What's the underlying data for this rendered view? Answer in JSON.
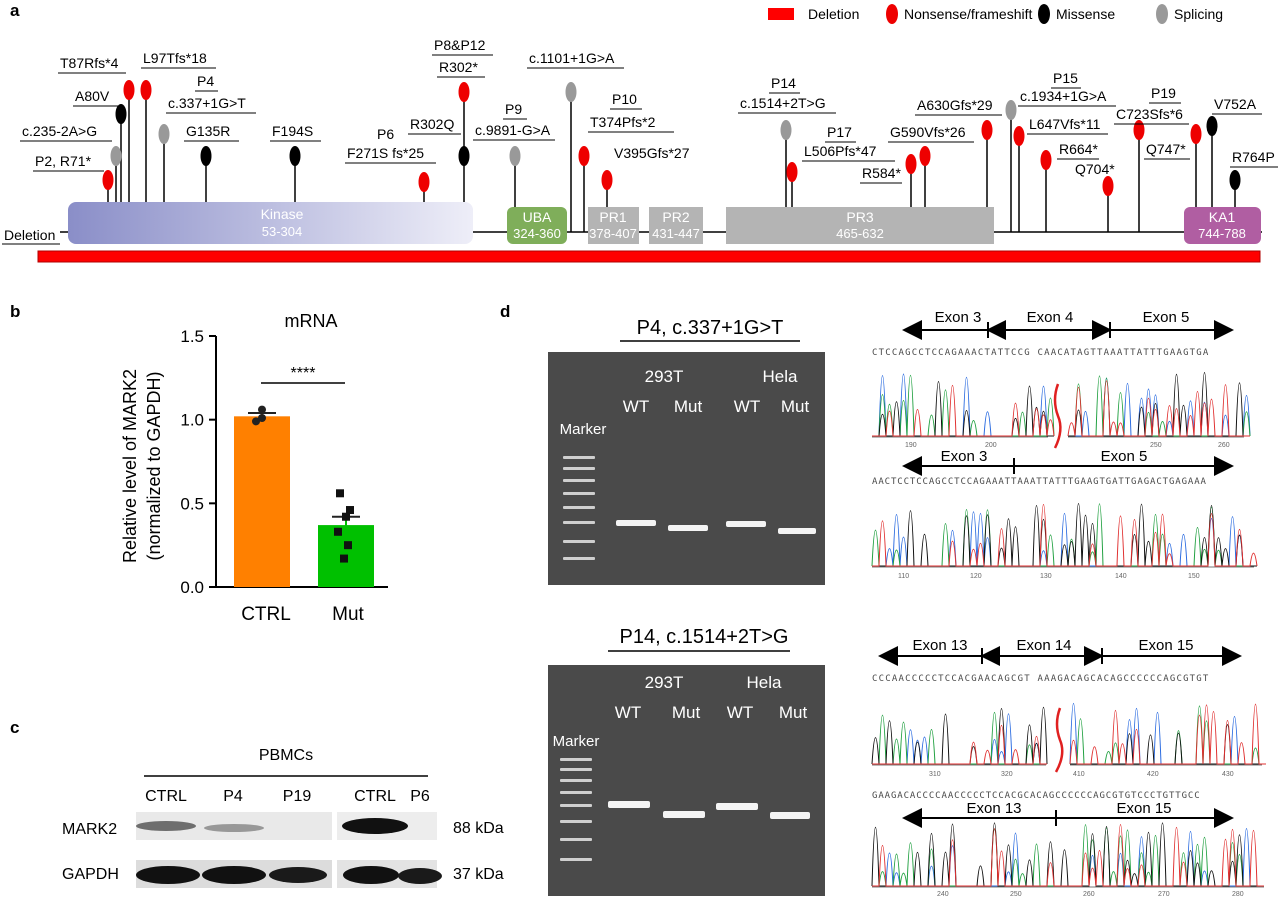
{
  "panel_labels": {
    "a": "a",
    "b": "b",
    "c": "c",
    "d": "d"
  },
  "legend": {
    "deletion": {
      "label": "Deletion",
      "color": "#ff0000"
    },
    "nonsense": {
      "label": "Nonsense/frameshift",
      "color": "#ee0000"
    },
    "missense": {
      "label": "Missense",
      "color": "#000000"
    },
    "splicing": {
      "label": "Splicing",
      "color": "#999999"
    }
  },
  "protein": {
    "domains": [
      {
        "name": "Kinase",
        "range": "53-304",
        "color": "#8a8ec8"
      },
      {
        "name": "UBA",
        "range": "324-360",
        "color": "#7fae5a"
      },
      {
        "name": "PR1",
        "range": "378-407",
        "color": "#b4b4b4"
      },
      {
        "name": "PR2",
        "range": "431-447",
        "color": "#b4b4b4"
      },
      {
        "name": "PR3",
        "range": "465-632",
        "color": "#b4b4b4"
      },
      {
        "name": "KA1",
        "range": "744-788",
        "color": "#b05ea2"
      }
    ],
    "deletion_label": "Deletion",
    "labels": [
      "c.235-2A>G",
      "P2, R71*",
      "A80V",
      "T87Rfs*4",
      "L97Tfs*18",
      "P4",
      "c.337+1G>T",
      "G135R",
      "F194S",
      "P6",
      "F271S fs*25",
      "R302Q",
      "P8&P12",
      "R302*",
      "P9",
      "c.9891-G>A",
      "c.1101+1G>A",
      "P10",
      "T374Pfs*2",
      "V395Gfs*27",
      "P14",
      "c.1514+2T>G",
      "P17",
      "L506Pfs*47",
      "R584*",
      "G590Vfs*26",
      "A630Gfs*29",
      "P15",
      "c.1934+1G>A",
      "L647Vfs*11",
      "R664*",
      "Q704*",
      "P19",
      "C723Sfs*6",
      "Q747*",
      "V752A",
      "R764P"
    ]
  },
  "panel_b": {
    "chart_data": {
      "type": "bar",
      "title": "mRNA",
      "ylabel_line1": "Relative level of MARK2",
      "ylabel_line2": "(normalized to GAPDH)",
      "categories": [
        "CTRL",
        "Mut"
      ],
      "values": [
        1.02,
        0.37
      ],
      "errors": [
        0.02,
        0.05
      ],
      "points": [
        [
          1.06,
          1.01,
          0.99
        ],
        [
          0.56,
          0.46,
          0.42,
          0.33,
          0.25,
          0.17
        ]
      ],
      "colors": [
        "#ff8000",
        "#00c000"
      ],
      "ylim": [
        0,
        1.5
      ],
      "yticks": [
        "0.0",
        "0.5",
        "1.0",
        "1.5"
      ],
      "significance": "****"
    }
  },
  "panel_c": {
    "group_label": "PBMCs",
    "lanes": [
      "CTRL",
      "P4",
      "P19",
      "CTRL",
      "P6"
    ],
    "rows": [
      {
        "protein": "MARK2",
        "size": "88 kDa"
      },
      {
        "protein": "GAPDH",
        "size": "37 kDa"
      }
    ]
  },
  "panel_d": {
    "top": {
      "title": "P4, c.337+1G>T",
      "cells": [
        "293T",
        "Hela"
      ],
      "lanes": [
        "WT",
        "Mut",
        "WT",
        "Mut"
      ],
      "marker": "Marker",
      "wt_exons": [
        "Exon 3",
        "Exon 4",
        "Exon 5"
      ],
      "wt_seq": "CTCCAGCCTCCAGAAACTATTCCG   CAACATAGTTAAATTATTTGAAGTGA",
      "wt_ticks": [
        "190",
        "200",
        "250",
        "260"
      ],
      "mut_exons": [
        "Exon 3",
        "Exon 5"
      ],
      "mut_seq": "AACTCCTCCAGCCTCCAGAAATTAAATTATTTGAAGTGATTGAGACTGAGAAA",
      "mut_ticks": [
        "110",
        "120",
        "130",
        "140",
        "150"
      ]
    },
    "bottom": {
      "title": "P14, c.1514+2T>G",
      "cells": [
        "293T",
        "Hela"
      ],
      "lanes": [
        "WT",
        "Mut",
        "WT",
        "Mut"
      ],
      "marker": "Marker",
      "wt_exons": [
        "Exon 13",
        "Exon 14",
        "Exon 15"
      ],
      "wt_seq": "CCCAACCCCCTCCACGAACAGCGT   AAAGACAGCACAGCCCCCCAGCGTGT",
      "wt_ticks": [
        "310",
        "320",
        "410",
        "420",
        "430"
      ],
      "mut_exons": [
        "Exon 13",
        "Exon 15"
      ],
      "mut_seq": "GAAGACACCCCAACCCCCTCCACGCACAGCCCCCCAGCGTGTCCCTGTTGCC",
      "mut_ticks": [
        "240",
        "250",
        "260",
        "270",
        "280"
      ]
    }
  }
}
